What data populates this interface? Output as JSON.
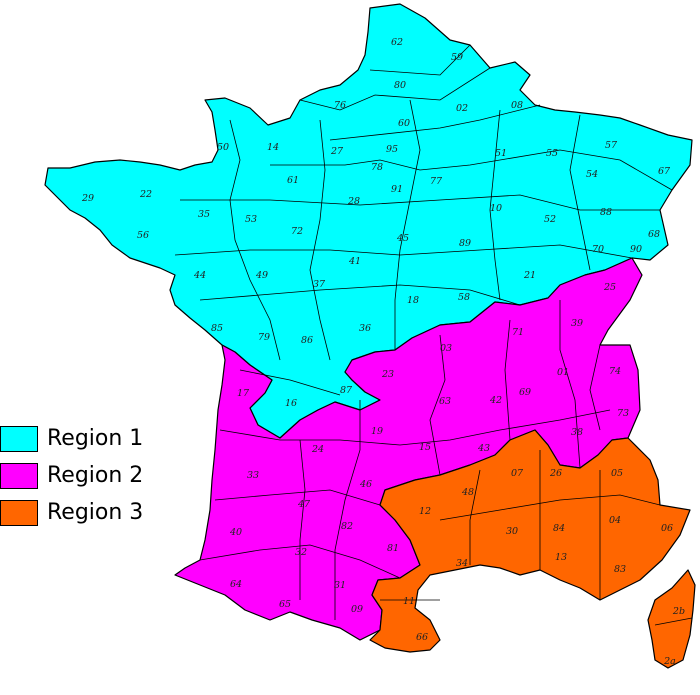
{
  "regions": [
    {
      "id": "r1",
      "label": "Region 1",
      "color": "#00FFFF"
    },
    {
      "id": "r2",
      "label": "Region 2",
      "color": "#FF00FF"
    },
    {
      "id": "r3",
      "label": "Region 3",
      "color": "#FF6600"
    }
  ],
  "departments": [
    {
      "code": "62",
      "region": "r1"
    },
    {
      "code": "59",
      "region": "r1"
    },
    {
      "code": "80",
      "region": "r1"
    },
    {
      "code": "76",
      "region": "r1"
    },
    {
      "code": "02",
      "region": "r1"
    },
    {
      "code": "08",
      "region": "r1"
    },
    {
      "code": "60",
      "region": "r1"
    },
    {
      "code": "50",
      "region": "r1"
    },
    {
      "code": "14",
      "region": "r1"
    },
    {
      "code": "27",
      "region": "r1"
    },
    {
      "code": "95",
      "region": "r1"
    },
    {
      "code": "78",
      "region": "r1"
    },
    {
      "code": "51",
      "region": "r1"
    },
    {
      "code": "55",
      "region": "r1"
    },
    {
      "code": "57",
      "region": "r1"
    },
    {
      "code": "67",
      "region": "r1"
    },
    {
      "code": "29",
      "region": "r1"
    },
    {
      "code": "22",
      "region": "r1"
    },
    {
      "code": "61",
      "region": "r1"
    },
    {
      "code": "91",
      "region": "r1"
    },
    {
      "code": "77",
      "region": "r1"
    },
    {
      "code": "54",
      "region": "r1"
    },
    {
      "code": "35",
      "region": "r1"
    },
    {
      "code": "53",
      "region": "r1"
    },
    {
      "code": "28",
      "region": "r1"
    },
    {
      "code": "10",
      "region": "r1"
    },
    {
      "code": "52",
      "region": "r1"
    },
    {
      "code": "88",
      "region": "r1"
    },
    {
      "code": "56",
      "region": "r1"
    },
    {
      "code": "72",
      "region": "r1"
    },
    {
      "code": "45",
      "region": "r1"
    },
    {
      "code": "89",
      "region": "r1"
    },
    {
      "code": "68",
      "region": "r1"
    },
    {
      "code": "70",
      "region": "r1"
    },
    {
      "code": "90",
      "region": "r1"
    },
    {
      "code": "44",
      "region": "r1"
    },
    {
      "code": "49",
      "region": "r1"
    },
    {
      "code": "41",
      "region": "r1"
    },
    {
      "code": "21",
      "region": "r1"
    },
    {
      "code": "37",
      "region": "r1"
    },
    {
      "code": "18",
      "region": "r1"
    },
    {
      "code": "58",
      "region": "r1"
    },
    {
      "code": "85",
      "region": "r1"
    },
    {
      "code": "79",
      "region": "r1"
    },
    {
      "code": "86",
      "region": "r1"
    },
    {
      "code": "36",
      "region": "r1"
    },
    {
      "code": "87",
      "region": "r1"
    },
    {
      "code": "16",
      "region": "r1"
    },
    {
      "code": "25",
      "region": "r2"
    },
    {
      "code": "39",
      "region": "r2"
    },
    {
      "code": "71",
      "region": "r2"
    },
    {
      "code": "03",
      "region": "r2"
    },
    {
      "code": "01",
      "region": "r2"
    },
    {
      "code": "74",
      "region": "r2"
    },
    {
      "code": "23",
      "region": "r2"
    },
    {
      "code": "63",
      "region": "r2"
    },
    {
      "code": "42",
      "region": "r2"
    },
    {
      "code": "69",
      "region": "r2"
    },
    {
      "code": "73",
      "region": "r2"
    },
    {
      "code": "17",
      "region": "r2"
    },
    {
      "code": "19",
      "region": "r2"
    },
    {
      "code": "15",
      "region": "r2"
    },
    {
      "code": "43",
      "region": "r2"
    },
    {
      "code": "38",
      "region": "r2"
    },
    {
      "code": "24",
      "region": "r2"
    },
    {
      "code": "33",
      "region": "r2"
    },
    {
      "code": "46",
      "region": "r2"
    },
    {
      "code": "47",
      "region": "r2"
    },
    {
      "code": "40",
      "region": "r2"
    },
    {
      "code": "82",
      "region": "r2"
    },
    {
      "code": "81",
      "region": "r2"
    },
    {
      "code": "32",
      "region": "r2"
    },
    {
      "code": "64",
      "region": "r2"
    },
    {
      "code": "31",
      "region": "r2"
    },
    {
      "code": "65",
      "region": "r2"
    },
    {
      "code": "09",
      "region": "r2"
    },
    {
      "code": "07",
      "region": "r3"
    },
    {
      "code": "26",
      "region": "r3"
    },
    {
      "code": "05",
      "region": "r3"
    },
    {
      "code": "48",
      "region": "r3"
    },
    {
      "code": "12",
      "region": "r3"
    },
    {
      "code": "04",
      "region": "r3"
    },
    {
      "code": "06",
      "region": "r3"
    },
    {
      "code": "30",
      "region": "r3"
    },
    {
      "code": "84",
      "region": "r3"
    },
    {
      "code": "34",
      "region": "r3"
    },
    {
      "code": "13",
      "region": "r3"
    },
    {
      "code": "83",
      "region": "r3"
    },
    {
      "code": "11",
      "region": "r3"
    },
    {
      "code": "66",
      "region": "r3"
    },
    {
      "code": "2b",
      "region": "r3"
    },
    {
      "code": "2a",
      "region": "r3"
    }
  ],
  "legend": {
    "items": [
      {
        "label": "Region 1",
        "color": "#00FFFF"
      },
      {
        "label": "Region 2",
        "color": "#FF00FF"
      },
      {
        "label": "Region 3",
        "color": "#FF6600"
      }
    ]
  }
}
